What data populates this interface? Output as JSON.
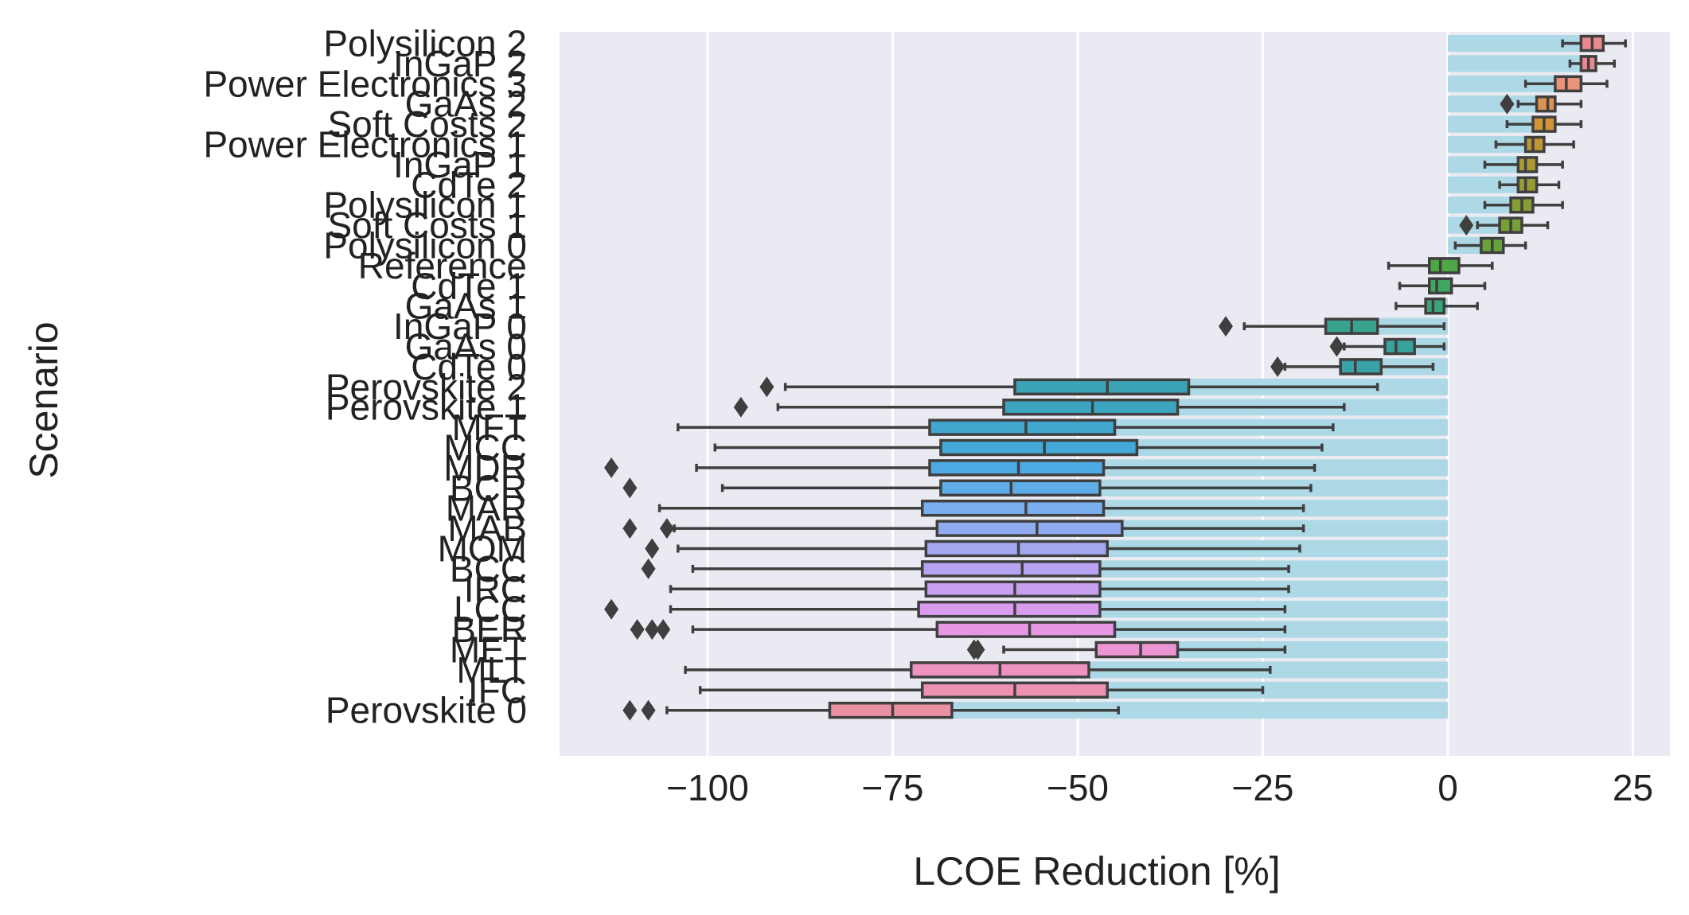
{
  "chart_data": {
    "type": "box",
    "orientation": "horizontal",
    "xlabel": "LCOE Reduction [%]",
    "ylabel": "Scenario",
    "xlim": [
      -120,
      30
    ],
    "xticks": [
      -100,
      -75,
      -50,
      -25,
      0,
      25
    ],
    "xtick_labels": [
      "−100",
      "−75",
      "−50",
      "−25",
      "0",
      "25"
    ],
    "grid": true,
    "background_color": "#eaeaf2",
    "bar_color": "#add8e6",
    "box_edge_color": "#3f3f3f",
    "categories": [
      {
        "label": "Polysilicon 2",
        "median": 19.5,
        "q1": 18,
        "q3": 21,
        "whisker_low": 15.5,
        "whisker_high": 24,
        "outliers": [],
        "color": "#ea8a8f"
      },
      {
        "label": "InGaP 2",
        "median": 19,
        "q1": 18,
        "q3": 20,
        "whisker_low": 16.5,
        "whisker_high": 22.5,
        "outliers": [],
        "color": "#ea8a8f"
      },
      {
        "label": "Power Electronics 3",
        "median": 16,
        "q1": 14.5,
        "q3": 18,
        "whisker_low": 10.5,
        "whisker_high": 21.5,
        "outliers": [],
        "color": "#e9937a"
      },
      {
        "label": "GaAs 2",
        "median": 13.5,
        "q1": 12,
        "q3": 14.5,
        "whisker_low": 9.5,
        "whisker_high": 18,
        "outliers": [
          8
        ],
        "color": "#df9250"
      },
      {
        "label": "Soft Costs 2",
        "median": 13,
        "q1": 11.5,
        "q3": 14.5,
        "whisker_low": 8,
        "whisker_high": 18,
        "outliers": [],
        "color": "#d19436"
      },
      {
        "label": "Power Electronics 1",
        "median": 11.5,
        "q1": 10.5,
        "q3": 13,
        "whisker_low": 6.5,
        "whisker_high": 17,
        "outliers": [],
        "color": "#bd9734"
      },
      {
        "label": "InGaP 1",
        "median": 10.5,
        "q1": 9.5,
        "q3": 12,
        "whisker_low": 5,
        "whisker_high": 15.5,
        "outliers": [],
        "color": "#a99a33"
      },
      {
        "label": "CdTe 2",
        "median": 10.5,
        "q1": 9.5,
        "q3": 12,
        "whisker_low": 7,
        "whisker_high": 15,
        "outliers": [],
        "color": "#969c32"
      },
      {
        "label": "Polysilicon 1",
        "median": 10,
        "q1": 8.5,
        "q3": 11.5,
        "whisker_low": 5,
        "whisker_high": 15.5,
        "outliers": [],
        "color": "#849e34"
      },
      {
        "label": "Soft Costs 1",
        "median": 8.5,
        "q1": 7,
        "q3": 10,
        "whisker_low": 4,
        "whisker_high": 13.5,
        "outliers": [
          2.5
        ],
        "color": "#74a036"
      },
      {
        "label": "Polysilicon 0",
        "median": 6,
        "q1": 4.5,
        "q3": 7.5,
        "whisker_low": 1,
        "whisker_high": 10.5,
        "outliers": [],
        "color": "#68a33a"
      },
      {
        "label": "Reference",
        "median": -1,
        "q1": -2.5,
        "q3": 1.5,
        "whisker_low": -8,
        "whisker_high": 6,
        "outliers": [],
        "color": "#4ea746"
      },
      {
        "label": "CdTe 1",
        "median": -1.5,
        "q1": -2.5,
        "q3": 0.5,
        "whisker_low": -6.5,
        "whisker_high": 5,
        "outliers": [],
        "color": "#3ea862"
      },
      {
        "label": "GaAs 1",
        "median": -2,
        "q1": -3,
        "q3": -0.5,
        "whisker_low": -7,
        "whisker_high": 4,
        "outliers": [],
        "color": "#3aa57d"
      },
      {
        "label": "InGaP 0",
        "median": -13,
        "q1": -16.5,
        "q3": -9.5,
        "whisker_low": -27.5,
        "whisker_high": -0.5,
        "outliers": [
          -30
        ],
        "color": "#38a48f"
      },
      {
        "label": "GaAs 0",
        "median": -7,
        "q1": -8.5,
        "q3": -4.5,
        "whisker_low": -14,
        "whisker_high": -0.5,
        "outliers": [
          -15
        ],
        "color": "#38a39c"
      },
      {
        "label": "CdTe 0",
        "median": -12.5,
        "q1": -14.5,
        "q3": -9,
        "whisker_low": -22,
        "whisker_high": -2,
        "outliers": [
          -23
        ],
        "color": "#39a2a9"
      },
      {
        "label": "Perovskite 2",
        "median": -46,
        "q1": -58.5,
        "q3": -35,
        "whisker_low": -89.5,
        "whisker_high": -9.5,
        "outliers": [
          -92
        ],
        "color": "#3ba3b4"
      },
      {
        "label": "Perovskite 1",
        "median": -48,
        "q1": -60,
        "q3": -36.5,
        "whisker_low": -90.5,
        "whisker_high": -14,
        "outliers": [
          -95.5
        ],
        "color": "#3da4c0"
      },
      {
        "label": "MFT",
        "median": -57,
        "q1": -70,
        "q3": -45,
        "whisker_low": -104,
        "whisker_high": -15.5,
        "outliers": [],
        "color": "#40a6cd"
      },
      {
        "label": "MCC",
        "median": -54.5,
        "q1": -68.5,
        "q3": -42,
        "whisker_low": -99,
        "whisker_high": -17,
        "outliers": [],
        "color": "#44a8d8"
      },
      {
        "label": "MDR",
        "median": -58,
        "q1": -70,
        "q3": -46.5,
        "whisker_low": -101.5,
        "whisker_high": -18,
        "outliers": [
          -113
        ],
        "color": "#4eaae2"
      },
      {
        "label": "BCR",
        "median": -59,
        "q1": -68.5,
        "q3": -47,
        "whisker_low": -98,
        "whisker_high": -18.5,
        "outliers": [
          -110.5
        ],
        "color": "#5fade8"
      },
      {
        "label": "MAR",
        "median": -57,
        "q1": -71,
        "q3": -46.5,
        "whisker_low": -106.5,
        "whisker_high": -19.5,
        "outliers": [],
        "color": "#7aaeec"
      },
      {
        "label": "MAB",
        "median": -55.5,
        "q1": -69,
        "q3": -44,
        "whisker_low": -104.5,
        "whisker_high": -19.5,
        "outliers": [
          -110.5,
          -105.5
        ],
        "color": "#90abef"
      },
      {
        "label": "MOM",
        "median": -58,
        "q1": -70.5,
        "q3": -46,
        "whisker_low": -104,
        "whisker_high": -20,
        "outliers": [
          -107.5
        ],
        "color": "#a5a8f1"
      },
      {
        "label": "BCC",
        "median": -57.5,
        "q1": -71,
        "q3": -47,
        "whisker_low": -102,
        "whisker_high": -21.5,
        "outliers": [
          -108
        ],
        "color": "#b8a3f2"
      },
      {
        "label": "IRC",
        "median": -58.5,
        "q1": -70.5,
        "q3": -47,
        "whisker_low": -105,
        "whisker_high": -21.5,
        "outliers": [],
        "color": "#c99ff0"
      },
      {
        "label": "LCC",
        "median": -58.5,
        "q1": -71.5,
        "q3": -47,
        "whisker_low": -105,
        "whisker_high": -22,
        "outliers": [
          -113
        ],
        "color": "#d99bec"
      },
      {
        "label": "BER",
        "median": -56.5,
        "q1": -69,
        "q3": -45,
        "whisker_low": -102,
        "whisker_high": -22,
        "outliers": [
          -109.5,
          -107.5,
          -106
        ],
        "color": "#e597e2"
      },
      {
        "label": "MET",
        "median": -41.5,
        "q1": -47.5,
        "q3": -36.5,
        "whisker_low": -60,
        "whisker_high": -22,
        "outliers": [
          -64,
          -63.5
        ],
        "color": "#eb95d3"
      },
      {
        "label": "MLT",
        "median": -60.5,
        "q1": -72.5,
        "q3": -48.5,
        "whisker_low": -103,
        "whisker_high": -24,
        "outliers": [],
        "color": "#ed93c2"
      },
      {
        "label": "IFC",
        "median": -58.5,
        "q1": -71,
        "q3": -46,
        "whisker_low": -101,
        "whisker_high": -25,
        "outliers": [],
        "color": "#ec91b2"
      },
      {
        "label": "Perovskite 0",
        "median": -75,
        "q1": -83.5,
        "q3": -67,
        "whisker_low": -105.5,
        "whisker_high": -44.5,
        "outliers": [
          -110.5,
          -108
        ],
        "color": "#ea90a2"
      }
    ]
  }
}
